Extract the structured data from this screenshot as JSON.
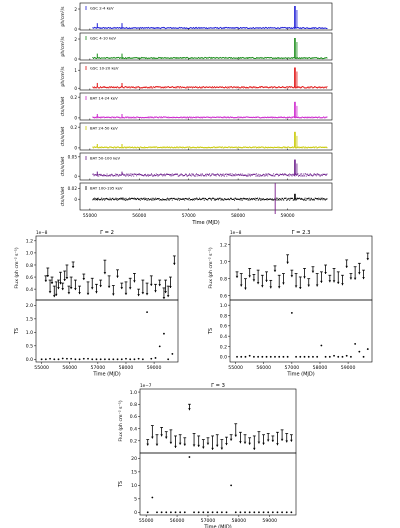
{
  "figure": {
    "top_panel": {
      "xlabel": "Time (MJD)",
      "xlim": [
        54800,
        59900
      ],
      "xticks": [
        55000,
        56000,
        57000,
        58000,
        59000
      ],
      "vline_x": 58750,
      "rows": [
        {
          "label": "GSC 2-4 keV",
          "ylabel": "ph/cm²/s",
          "color": "#1f1fd6",
          "ylim": [
            -0.1,
            2.6
          ],
          "yticks": [
            0,
            2
          ],
          "base": 0.1,
          "noise": 0.06,
          "spike": 2.2
        },
        {
          "label": "GSC 4-10 keV",
          "ylabel": "ph/cm²/s",
          "color": "#1a8c1a",
          "ylim": [
            -0.1,
            2.6
          ],
          "yticks": [
            0,
            2
          ],
          "base": 0.1,
          "noise": 0.06,
          "spike": 2.0
        },
        {
          "label": "GSC 10-20 keV",
          "ylabel": "ph/cm²/s",
          "color": "#e01010",
          "ylim": [
            -0.1,
            1.4
          ],
          "yticks": [
            0,
            1
          ],
          "base": 0.05,
          "noise": 0.04,
          "spike": 1.1
        },
        {
          "label": "BAT 14-24 keV",
          "ylabel": "cts/s/det",
          "color": "#cc22cc",
          "ylim": [
            -0.02,
            0.24
          ],
          "yticks": [
            0,
            0.2
          ],
          "base": 0.005,
          "noise": 0.005,
          "spike": 0.15
        },
        {
          "label": "BAT 24-50 keV",
          "ylabel": "cts/s/det",
          "color": "#c8c800",
          "ylim": [
            -0.02,
            0.24
          ],
          "yticks": [
            0,
            0.2
          ],
          "base": 0.005,
          "noise": 0.005,
          "spike": 0.15
        },
        {
          "label": "BAT 50-100 keV",
          "ylabel": "cts/s/det",
          "color": "#6a1a8a",
          "ylim": [
            -0.01,
            0.06
          ],
          "yticks": [
            0,
            0.05
          ],
          "base": 0.003,
          "noise": 0.003,
          "spike": 0.04
        },
        {
          "label": "BAT 100-195 keV",
          "ylabel": "cts/s/det",
          "color": "#000000",
          "ylim": [
            -0.02,
            0.03
          ],
          "yticks": [
            0,
            0.02
          ],
          "base": 0.0,
          "noise": 0.002,
          "spike": 0.01
        }
      ]
    },
    "panels": [
      {
        "title": "Γ = 2",
        "flux_ylabel": "Flux (ph cm⁻² s⁻¹)",
        "flux_exp": "1e−8",
        "flux_ylim": [
          0.22,
          1.28
        ],
        "flux_yticks": [
          0.4,
          0.6,
          0.8,
          1.0,
          1.2
        ],
        "flux_ticklabels": [
          "0.4",
          "0.6",
          "0.8",
          "1.0",
          "1.2"
        ],
        "ts_ylabel": "TS",
        "ts_ylim": [
          -0.1,
          2.2
        ],
        "ts_yticks": [
          0.0,
          0.5,
          1.0,
          1.5,
          2.0
        ],
        "ts_ticklabels": [
          "0.0",
          "0.5",
          "1.0",
          "1.5",
          "2.0"
        ],
        "xlabel": "Time (MJD)",
        "xlim": [
          54800,
          59850
        ],
        "xticks": [
          55000,
          56000,
          57000,
          58000,
          59000
        ]
      },
      {
        "title": "Γ = 2.3",
        "flux_ylabel": "Flux (ph cm⁻² s⁻¹)",
        "flux_exp": "1e−8",
        "flux_ylim": [
          0.55,
          1.3
        ],
        "flux_yticks": [
          0.6,
          0.8,
          1.0,
          1.2
        ],
        "flux_ticklabels": [
          "0.6",
          "0.8",
          "1.0",
          "1.2"
        ],
        "ts_ylabel": "TS",
        "ts_ylim": [
          -0.1,
          1.1
        ],
        "ts_yticks": [
          0.0,
          0.2,
          0.4,
          0.6,
          0.8,
          1.0
        ],
        "ts_ticklabels": [
          "0.0",
          "0.2",
          "0.4",
          "0.6",
          "0.8",
          "1.0"
        ],
        "xlabel": "Time (MJD)",
        "xlim": [
          54800,
          59850
        ],
        "xticks": [
          55000,
          56000,
          57000,
          58000,
          59000
        ]
      },
      {
        "title": "Γ = 3",
        "flux_ylabel": "Flux (ph cm⁻² s⁻¹)",
        "flux_exp": "1e−7",
        "flux_ylim": [
          0.0,
          1.05
        ],
        "flux_yticks": [
          0.2,
          0.4,
          0.6,
          0.8,
          1.0
        ],
        "flux_ticklabels": [
          "0.2",
          "0.4",
          "0.6",
          "0.8",
          "1.0"
        ],
        "ts_ylabel": "TS",
        "ts_ylim": [
          -1,
          22
        ],
        "ts_yticks": [
          0,
          5,
          10,
          15,
          20
        ],
        "ts_ticklabels": [
          "0",
          "5",
          "10",
          "15",
          "20"
        ],
        "xlabel": "Time (MJD)",
        "xlim": [
          54800,
          59850
        ],
        "xticks": [
          55000,
          56000,
          57000,
          58000,
          59000
        ]
      }
    ]
  },
  "chart_data": [
    {
      "type": "scatter",
      "title": "",
      "xlabel": "Time (MJD)",
      "x_range": [
        54800,
        59900
      ],
      "series": [
        {
          "name": "GSC 2-4 keV"
        },
        {
          "name": "GSC 4-10 keV"
        },
        {
          "name": "GSC 10-20 keV"
        },
        {
          "name": "BAT 14-24 keV"
        },
        {
          "name": "BAT 24-50 keV"
        },
        {
          "name": "BAT 50-100 keV"
        },
        {
          "name": "BAT 100-195 keV"
        }
      ],
      "outburst_mjd": 59150,
      "secondary_spikes_mjd": [
        55150,
        55650
      ]
    },
    {
      "type": "scatter",
      "title": "Γ = 2",
      "xlabel": "Time (MJD)",
      "x": [
        55150,
        55250,
        55350,
        55450,
        55550,
        55650,
        55750,
        55850,
        55950,
        56050,
        56150,
        56250,
        56350,
        56450,
        56550,
        56650,
        56750,
        56850,
        56950,
        57050,
        57150,
        57250,
        57350,
        57450,
        57550,
        57650,
        57750,
        57850,
        57950,
        58050,
        58150,
        58250,
        58350,
        58450,
        58550,
        58650,
        58750,
        58850,
        58950,
        59050,
        59150,
        59250,
        59350,
        59450,
        59550,
        59650
      ],
      "flux_values": [
        0.62,
        0.55,
        0.45,
        0.55,
        0.5,
        0.8,
        0.6,
        0.55,
        0.45,
        0.65,
        0.52,
        0.58,
        0.48,
        0.55,
        0.88,
        0.62,
        0.46,
        0.72,
        0.5,
        0.52,
        0.58,
        0.66,
        0.4,
        0.55,
        0.5,
        0.62,
        0.48,
        0.55,
        0.42,
        0.45,
        0.75,
        0.6,
        0.52,
        0.68,
        0.7,
        0.45,
        0.85,
        0.55,
        0.6,
        0.95
      ],
      "flux_x": [
        55150,
        55300,
        55450,
        55600,
        55750,
        55900,
        56050,
        56200,
        56350,
        56500,
        56650,
        56800,
        56950,
        57100,
        57250,
        57400,
        57550,
        57700,
        57850,
        58000,
        58150,
        58300,
        58450,
        58600,
        58750,
        58900,
        59050,
        59200,
        59350,
        59500,
        55220,
        55370,
        55520,
        55670,
        55820,
        55970,
        56120,
        59410,
        59580,
        59720
      ],
      "ts_x": [
        55000,
        55150,
        55300,
        55450,
        55600,
        55750,
        55900,
        56050,
        56200,
        56350,
        56500,
        56650,
        56800,
        56950,
        57100,
        57250,
        57400,
        57550,
        57700,
        57850,
        58000,
        58150,
        58300,
        58450,
        58600,
        58750,
        58900,
        59050,
        59200,
        59350,
        59500,
        59650
      ],
      "ts_values": [
        0.0,
        0.0,
        0.02,
        0.0,
        0.0,
        0.03,
        0.02,
        0.02,
        0.0,
        0.0,
        0.02,
        0.02,
        0.0,
        0.0,
        0.0,
        0.0,
        0.0,
        0.0,
        0.0,
        0.0,
        0.02,
        0.0,
        0.0,
        0.02,
        0.0,
        1.75,
        0.02,
        0.05,
        0.48,
        0.95,
        0.0,
        0.2
      ]
    },
    {
      "type": "scatter",
      "title": "Γ = 2.3",
      "xlabel": "Time (MJD)",
      "flux_x": [
        55050,
        55200,
        55350,
        55500,
        55650,
        55800,
        55950,
        56100,
        56250,
        56400,
        56550,
        56700,
        56850,
        57000,
        57150,
        57300,
        57450,
        57600,
        57750,
        57900,
        58050,
        58200,
        58350,
        58500,
        58650,
        58800,
        58950,
        59100,
        59250,
        59400,
        59550,
        59700
      ],
      "flux_values": [
        0.88,
        0.86,
        0.8,
        0.92,
        0.85,
        0.9,
        0.84,
        0.88,
        0.78,
        0.95,
        0.84,
        0.86,
        1.08,
        0.9,
        0.86,
        0.82,
        0.92,
        0.8,
        0.94,
        0.86,
        0.88,
        0.96,
        0.84,
        0.92,
        0.88,
        0.84,
        1.02,
        0.86,
        0.94,
        0.98,
        0.9,
        1.1
      ],
      "ts_x": [
        55050,
        55200,
        55350,
        55500,
        55650,
        55800,
        55950,
        56100,
        56250,
        56400,
        56550,
        56700,
        56850,
        57000,
        57150,
        57300,
        57450,
        57600,
        57750,
        57900,
        58050,
        58200,
        58350,
        58500,
        58650,
        58800,
        58950,
        59100,
        59250,
        59400,
        59550,
        59700
      ],
      "ts_values": [
        0.0,
        0.0,
        0.0,
        0.02,
        0.0,
        0.0,
        0.0,
        0.0,
        0.0,
        0.0,
        0.0,
        0.0,
        0.0,
        0.85,
        0.0,
        0.0,
        0.0,
        0.0,
        0.0,
        0.0,
        0.22,
        0.0,
        0.0,
        0.02,
        0.0,
        0.0,
        0.02,
        0.0,
        0.25,
        0.1,
        0.0,
        0.15
      ]
    },
    {
      "type": "scatter",
      "title": "Γ = 3",
      "xlabel": "Time (MJD)",
      "flux_x": [
        55050,
        55200,
        55350,
        55500,
        55650,
        55800,
        55950,
        56100,
        56250,
        56400,
        56550,
        56700,
        56850,
        57000,
        57150,
        57300,
        57450,
        57600,
        57750,
        57900,
        58050,
        58200,
        58350,
        58500,
        58650,
        58800,
        58950,
        59100,
        59250,
        59400,
        59550,
        59700
      ],
      "flux_values": [
        0.22,
        0.45,
        0.3,
        0.42,
        0.35,
        0.38,
        0.28,
        0.3,
        0.25,
        0.8,
        0.32,
        0.28,
        0.22,
        0.25,
        0.28,
        0.3,
        0.22,
        0.26,
        0.3,
        0.48,
        0.34,
        0.3,
        0.25,
        0.28,
        0.35,
        0.3,
        0.32,
        0.28,
        0.34,
        0.38,
        0.32,
        0.3
      ],
      "ts_x": [
        55050,
        55200,
        55350,
        55500,
        55650,
        55800,
        55950,
        56100,
        56250,
        56400,
        56550,
        56700,
        56850,
        57000,
        57150,
        57300,
        57450,
        57600,
        57750,
        57900,
        58050,
        58200,
        58350,
        58500,
        58650,
        58800,
        58950,
        59100,
        59250,
        59400,
        59550,
        59700
      ],
      "ts_values": [
        0.0,
        5.5,
        0.0,
        0.0,
        0.0,
        0.0,
        0.0,
        0.0,
        0.0,
        20.5,
        0.0,
        0.0,
        0.0,
        0.0,
        0.0,
        0.0,
        0.0,
        0.0,
        10.0,
        0.0,
        0.0,
        0.0,
        0.0,
        0.0,
        0.0,
        0.0,
        0.0,
        0.0,
        0.0,
        0.0,
        0.0,
        0.0
      ]
    }
  ]
}
